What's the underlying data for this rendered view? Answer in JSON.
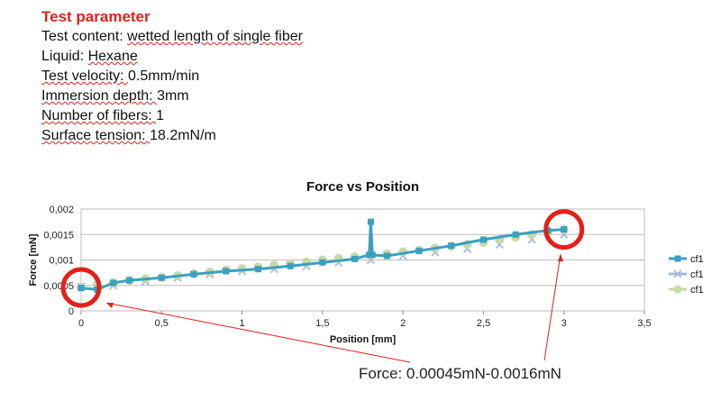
{
  "parameters": {
    "title": "Test parameter",
    "lines": [
      {
        "label": "Test content: ",
        "value": "wetted length of single fiber"
      },
      {
        "label": "Liquid: ",
        "value": "Hexane"
      },
      {
        "label": "Test  velocity: ",
        "value": " 0.5mm/min"
      },
      {
        "label": "Immersion depth: ",
        "value": "3mm"
      },
      {
        "label": "Number of fibers: ",
        "value": "1"
      },
      {
        "label": "Surface tension: ",
        "value": "18.2mN/m"
      }
    ]
  },
  "annotation": "Force:  0.00045mN-0.0016mN",
  "colors": {
    "series1": "#3aa0c0",
    "series2": "#aab8e0",
    "series3": "#c6d9a8",
    "highlight": "#e3201b",
    "annotation_arrow": "#e3201b"
  },
  "chart_data": {
    "type": "scatter",
    "title": "Force vs Position",
    "xlabel": "Position [mm]",
    "ylabel": "Force [mN]",
    "xlim": [
      0,
      3.5
    ],
    "ylim": [
      0,
      0.002
    ],
    "xticks": [
      "0",
      "0,5",
      "1",
      "1,5",
      "2",
      "2,5",
      "3",
      "3,5"
    ],
    "yticks": [
      "0",
      "0,0005",
      "0,001",
      "0,0015",
      "0,002"
    ],
    "grid": true,
    "legend_position": "right",
    "series": [
      {
        "name": "cf1",
        "marker": "square",
        "x": [
          0,
          0.1,
          0.2,
          0.3,
          0.5,
          0.7,
          0.9,
          1.1,
          1.3,
          1.5,
          1.7,
          1.79,
          1.8,
          1.81,
          1.9,
          2.1,
          2.3,
          2.5,
          2.7,
          2.9,
          3.0
        ],
        "y": [
          0.00045,
          0.00042,
          0.00055,
          0.0006,
          0.00065,
          0.00072,
          0.00078,
          0.00082,
          0.00088,
          0.00095,
          0.00102,
          0.0011,
          0.00175,
          0.0011,
          0.00108,
          0.00118,
          0.00128,
          0.0014,
          0.0015,
          0.00158,
          0.0016
        ]
      },
      {
        "name": "cf1",
        "marker": "x",
        "x": [
          0,
          0.2,
          0.4,
          0.6,
          0.8,
          1.0,
          1.2,
          1.4,
          1.6,
          1.8,
          2.0,
          2.2,
          2.4,
          2.6,
          2.8,
          3.0
        ],
        "y": [
          0.00048,
          0.0005,
          0.00058,
          0.00065,
          0.00072,
          0.00078,
          0.00082,
          0.00088,
          0.00095,
          0.001,
          0.00108,
          0.00115,
          0.00122,
          0.0013,
          0.0014,
          0.0015
        ]
      },
      {
        "name": "cf1",
        "marker": "circle",
        "x": [
          0,
          0.1,
          0.2,
          0.3,
          0.4,
          0.5,
          0.6,
          0.7,
          0.8,
          0.9,
          1.0,
          1.1,
          1.2,
          1.3,
          1.4,
          1.5,
          1.6,
          1.7,
          1.8,
          1.9,
          2.0,
          2.1,
          2.2,
          2.3,
          2.4,
          2.5,
          2.6,
          2.7,
          2.8,
          2.9,
          3.0
        ],
        "y": [
          0.00046,
          0.00052,
          0.00055,
          0.0006,
          0.00063,
          0.00066,
          0.00069,
          0.00073,
          0.00076,
          0.0008,
          0.00083,
          0.00086,
          0.0009,
          0.00093,
          0.00096,
          0.001,
          0.00103,
          0.00106,
          0.00109,
          0.00112,
          0.00116,
          0.00119,
          0.00123,
          0.00127,
          0.00131,
          0.00135,
          0.0014,
          0.00145,
          0.0015,
          0.00155,
          0.0016
        ]
      }
    ]
  }
}
